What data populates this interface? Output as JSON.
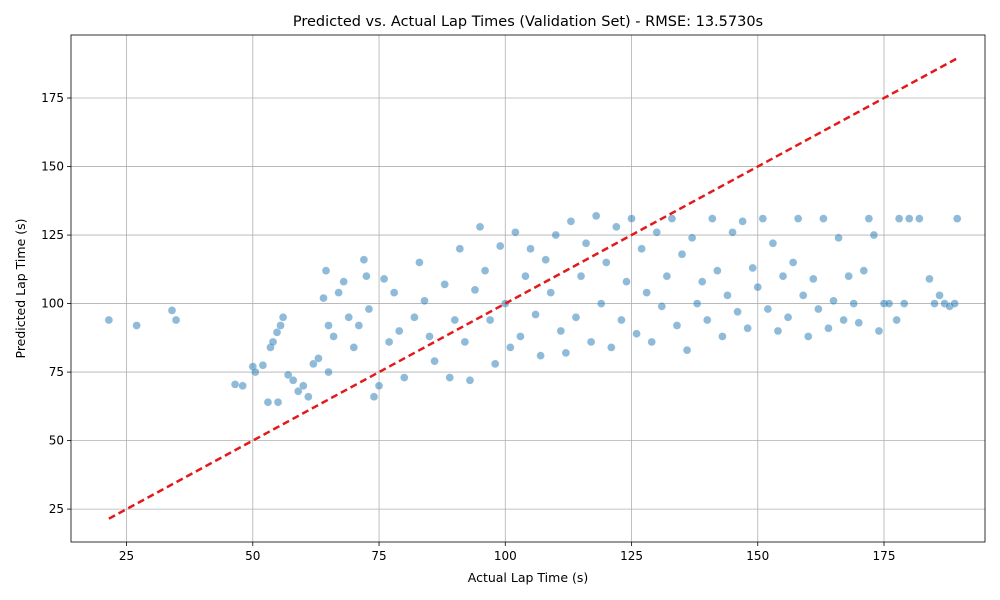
{
  "chart_data": {
    "type": "scatter",
    "title": "Predicted vs. Actual Lap Times (Validation Set) - RMSE: 13.5730s",
    "xlabel": "Actual Lap Time (s)",
    "ylabel": "Predicted Lap Time (s)",
    "xlim": [
      14,
      195
    ],
    "ylim": [
      13,
      198
    ],
    "xticks": [
      25,
      50,
      75,
      100,
      125,
      150,
      175
    ],
    "yticks": [
      25,
      50,
      75,
      100,
      125,
      150,
      175
    ],
    "grid": true,
    "reference_line": {
      "style": "dashed",
      "color": "#e31a1c",
      "x": [
        21.5,
        189.5
      ],
      "y": [
        21.5,
        189.5
      ]
    },
    "series": [
      {
        "color": "#1f77b4",
        "points": [
          [
            21.5,
            94
          ],
          [
            27,
            92
          ],
          [
            34,
            97.5
          ],
          [
            34.8,
            94
          ],
          [
            46.5,
            70.5
          ],
          [
            48,
            70
          ],
          [
            50,
            77
          ],
          [
            50.5,
            75
          ],
          [
            52,
            77.5
          ],
          [
            53,
            64
          ],
          [
            53.5,
            84
          ],
          [
            54,
            86
          ],
          [
            54.8,
            89.5
          ],
          [
            55.5,
            92
          ],
          [
            56,
            95
          ],
          [
            55,
            64
          ],
          [
            57,
            74
          ],
          [
            58,
            72
          ],
          [
            59,
            68
          ],
          [
            60,
            70
          ],
          [
            61,
            66
          ],
          [
            62,
            78
          ],
          [
            63,
            80
          ],
          [
            64,
            102
          ],
          [
            64.5,
            112
          ],
          [
            65,
            92
          ],
          [
            65,
            75
          ],
          [
            66,
            88
          ],
          [
            67,
            104
          ],
          [
            68,
            108
          ],
          [
            69,
            95
          ],
          [
            70,
            84
          ],
          [
            71,
            92
          ],
          [
            72,
            116
          ],
          [
            72.5,
            110
          ],
          [
            73,
            98
          ],
          [
            74,
            66
          ],
          [
            75,
            70
          ],
          [
            76,
            109
          ],
          [
            77,
            86
          ],
          [
            78,
            104
          ],
          [
            79,
            90
          ],
          [
            80,
            73
          ],
          [
            82,
            95
          ],
          [
            83,
            115
          ],
          [
            84,
            101
          ],
          [
            85,
            88
          ],
          [
            86,
            79
          ],
          [
            88,
            107
          ],
          [
            89,
            73
          ],
          [
            90,
            94
          ],
          [
            91,
            120
          ],
          [
            92,
            86
          ],
          [
            93,
            72
          ],
          [
            94,
            105
          ],
          [
            95,
            128
          ],
          [
            96,
            112
          ],
          [
            97,
            94
          ],
          [
            98,
            78
          ],
          [
            99,
            121
          ],
          [
            100,
            100
          ],
          [
            101,
            84
          ],
          [
            102,
            126
          ],
          [
            103,
            88
          ],
          [
            104,
            110
          ],
          [
            105,
            120
          ],
          [
            106,
            96
          ],
          [
            107,
            81
          ],
          [
            108,
            116
          ],
          [
            109,
            104
          ],
          [
            110,
            125
          ],
          [
            111,
            90
          ],
          [
            112,
            82
          ],
          [
            113,
            130
          ],
          [
            114,
            95
          ],
          [
            115,
            110
          ],
          [
            116,
            122
          ],
          [
            117,
            86
          ],
          [
            118,
            132
          ],
          [
            119,
            100
          ],
          [
            120,
            115
          ],
          [
            121,
            84
          ],
          [
            122,
            128
          ],
          [
            123,
            94
          ],
          [
            124,
            108
          ],
          [
            125,
            131
          ],
          [
            126,
            89
          ],
          [
            127,
            120
          ],
          [
            128,
            104
          ],
          [
            129,
            86
          ],
          [
            130,
            126
          ],
          [
            131,
            99
          ],
          [
            132,
            110
          ],
          [
            133,
            131
          ],
          [
            134,
            92
          ],
          [
            135,
            118
          ],
          [
            136,
            83
          ],
          [
            137,
            124
          ],
          [
            138,
            100
          ],
          [
            139,
            108
          ],
          [
            140,
            94
          ],
          [
            141,
            131
          ],
          [
            142,
            112
          ],
          [
            143,
            88
          ],
          [
            144,
            103
          ],
          [
            145,
            126
          ],
          [
            146,
            97
          ],
          [
            147,
            130
          ],
          [
            148,
            91
          ],
          [
            149,
            113
          ],
          [
            150,
            106
          ],
          [
            151,
            131
          ],
          [
            152,
            98
          ],
          [
            153,
            122
          ],
          [
            154,
            90
          ],
          [
            155,
            110
          ],
          [
            156,
            95
          ],
          [
            157,
            115
          ],
          [
            158,
            131
          ],
          [
            159,
            103
          ],
          [
            160,
            88
          ],
          [
            161,
            109
          ],
          [
            162,
            98
          ],
          [
            163,
            131
          ],
          [
            164,
            91
          ],
          [
            165,
            101
          ],
          [
            166,
            124
          ],
          [
            167,
            94
          ],
          [
            168,
            110
          ],
          [
            169,
            100
          ],
          [
            170,
            93
          ],
          [
            171,
            112
          ],
          [
            172,
            131
          ],
          [
            173,
            125
          ],
          [
            174,
            90
          ],
          [
            175,
            100
          ],
          [
            176,
            100
          ],
          [
            177.5,
            94
          ],
          [
            178,
            131
          ],
          [
            179,
            100
          ],
          [
            180,
            131
          ],
          [
            182,
            131
          ],
          [
            184,
            109
          ],
          [
            185,
            100
          ],
          [
            186,
            103
          ],
          [
            187,
            100
          ],
          [
            188,
            99
          ],
          [
            189,
            100
          ],
          [
            189.5,
            131
          ]
        ]
      }
    ]
  }
}
